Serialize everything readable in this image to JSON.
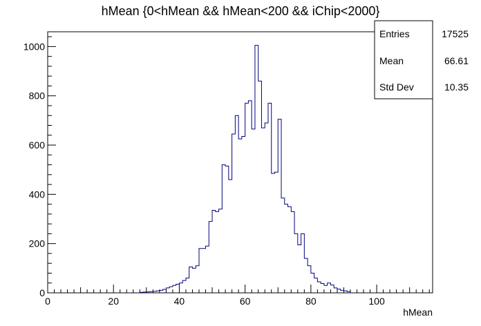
{
  "chart_data": {
    "type": "bar",
    "style": "histogram-step",
    "title": "hMean {0<hMean && hMean<200 && iChip<2000}",
    "xlabel": "hMean",
    "ylabel": "",
    "xlim": [
      0,
      117
    ],
    "ylim": [
      0,
      1060
    ],
    "bin_width": 1,
    "bin_start": 28,
    "values": [
      2,
      3,
      4,
      5,
      6,
      8,
      10,
      14,
      20,
      25,
      30,
      35,
      40,
      50,
      60,
      105,
      100,
      110,
      180,
      180,
      190,
      290,
      335,
      330,
      340,
      520,
      515,
      460,
      645,
      720,
      625,
      635,
      770,
      780,
      665,
      1005,
      860,
      670,
      690,
      770,
      485,
      490,
      705,
      385,
      360,
      350,
      330,
      240,
      195,
      240,
      140,
      110,
      80,
      60,
      45,
      38,
      30,
      40,
      32,
      20,
      15,
      10,
      8,
      5
    ],
    "xticks": [
      0,
      20,
      40,
      60,
      80,
      100
    ],
    "yticks": [
      0,
      200,
      400,
      600,
      800,
      1000
    ],
    "line_color": "#00007f",
    "stats": {
      "entries_label": "Entries",
      "entries": "17525",
      "mean_label": "Mean",
      "mean": "66.61",
      "std_label": "Std Dev",
      "std": "10.35"
    }
  }
}
